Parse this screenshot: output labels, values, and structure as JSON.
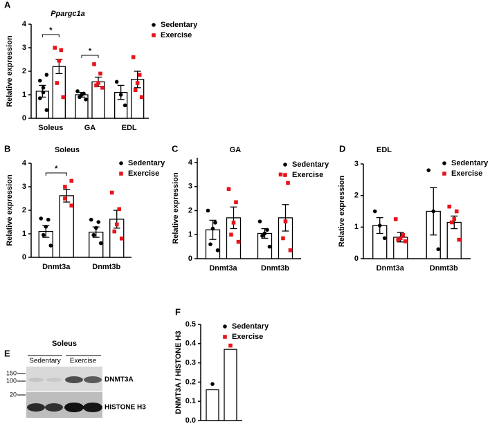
{
  "chart_data": [
    {
      "type": "bar",
      "panel": "A",
      "title": "Ppargc1a",
      "y_label": "Relative expression",
      "categories": [
        "Soleus",
        "GA",
        "EDL"
      ],
      "ylim": [
        0,
        4
      ],
      "yticks": [
        0,
        1,
        2,
        3,
        4
      ],
      "series": [
        {
          "name": "Sedentary",
          "color": "#000000",
          "values": [
            1.15,
            1.0,
            1.1
          ],
          "errors": [
            0.25,
            0.1,
            0.3
          ],
          "points": [
            [
              0.35,
              0.85,
              1.1,
              1.3,
              1.6,
              1.85
            ],
            [
              0.8,
              0.9,
              1.0,
              1.05,
              1.15
            ],
            [
              0.55,
              1.0,
              1.55
            ]
          ]
        },
        {
          "name": "Exercise",
          "color": "#e8141b",
          "values": [
            2.2,
            1.55,
            1.65
          ],
          "errors": [
            0.3,
            0.2,
            0.35
          ],
          "points": [
            [
              0.9,
              1.5,
              2.45,
              2.9,
              3.0
            ],
            [
              1.3,
              1.4,
              1.5,
              1.9,
              2.3
            ],
            [
              0.9,
              1.2,
              1.5,
              1.85,
              2.6
            ]
          ]
        }
      ],
      "annotations": [
        "*",
        "*"
      ]
    },
    {
      "type": "bar",
      "panel": "B",
      "title": "Soleus",
      "y_label": "Relative expression",
      "categories": [
        "Dnmt3a",
        "Dnmt3b"
      ],
      "ylim": [
        0,
        4
      ],
      "yticks": [
        0,
        1,
        2,
        3,
        4
      ],
      "series": [
        {
          "name": "Sedentary",
          "color": "#000000",
          "values": [
            1.1,
            1.07
          ],
          "errors": [
            0.25,
            0.22
          ],
          "points": [
            [
              0.5,
              0.95,
              1.3,
              1.6,
              1.65
            ],
            [
              0.6,
              0.95,
              1.25,
              1.5,
              1.6
            ]
          ]
        },
        {
          "name": "Exercise",
          "color": "#e8141b",
          "values": [
            2.62,
            1.62
          ],
          "errors": [
            0.27,
            0.38
          ],
          "points": [
            [
              2.2,
              2.5,
              3.0,
              3.25
            ],
            [
              0.8,
              1.1,
              1.4,
              2.05,
              2.75
            ]
          ]
        }
      ],
      "annotations": [
        "*"
      ]
    },
    {
      "type": "bar",
      "panel": "C",
      "title": "GA",
      "y_label": "Relative expression",
      "categories": [
        "Dnmt3a",
        "Dnmt3b"
      ],
      "ylim": [
        0,
        4.2
      ],
      "yticks": [
        0,
        1,
        2,
        3,
        4
      ],
      "series": [
        {
          "name": "Sedentary",
          "color": "#000000",
          "values": [
            1.2,
            1.05
          ],
          "errors": [
            0.4,
            0.2
          ],
          "points": [
            [
              0.35,
              0.6,
              1.25,
              1.5,
              2.0
            ],
            [
              0.5,
              0.95,
              1.05,
              1.2,
              1.55
            ]
          ]
        },
        {
          "name": "Exercise",
          "color": "#e8141b",
          "values": [
            1.7,
            1.7
          ],
          "errors": [
            0.45,
            0.55
          ],
          "points": [
            [
              0.7,
              1.0,
              1.5,
              2.35,
              2.9
            ],
            [
              0.35,
              0.85,
              1.55,
              3.15,
              3.5
            ]
          ]
        }
      ]
    },
    {
      "type": "bar",
      "panel": "D",
      "title": "EDL",
      "y_label": "Relative expression",
      "categories": [
        "Dnmt3a",
        "Dnmt3b"
      ],
      "ylim": [
        0,
        3
      ],
      "yticks": [
        0,
        1,
        2,
        3
      ],
      "series": [
        {
          "name": "Sedentary",
          "color": "#000000",
          "values": [
            1.05,
            1.5
          ],
          "errors": [
            0.25,
            0.75
          ],
          "points": [
            [
              0.65,
              1.05,
              1.5
            ],
            [
              0.3,
              1.5,
              2.8
            ]
          ]
        },
        {
          "name": "Exercise",
          "color": "#e8141b",
          "values": [
            0.68,
            1.15
          ],
          "errors": [
            0.15,
            0.2
          ],
          "points": [
            [
              0.55,
              0.6,
              0.65,
              0.75,
              1.25
            ],
            [
              0.6,
              1.15,
              1.25,
              1.5,
              1.65
            ]
          ]
        }
      ]
    },
    {
      "type": "bar",
      "panel": "F",
      "y_label": "DNMT3A / HISTONE H3",
      "categories": [
        null
      ],
      "ylim": [
        0,
        0.5
      ],
      "yticks": [
        {
          "value": 0,
          "label": "0.0"
        },
        0.1,
        0.2,
        0.3,
        0.4,
        0.5
      ],
      "series": [
        {
          "name": "Sedentary",
          "color": "#000000",
          "values": [
            0.16
          ],
          "points": [
            [
              0.19
            ]
          ]
        },
        {
          "name": "Exercise",
          "color": "#e8141b",
          "values": [
            0.37
          ],
          "points": [
            [
              0.39
            ]
          ]
        }
      ]
    }
  ],
  "blot": {
    "panel": "E",
    "title": "Soleus",
    "groups": [
      "Sedentary",
      "Exercise"
    ],
    "markers": [
      "150",
      "100",
      "20"
    ],
    "bands": [
      "DNMT3A",
      "HISTONE H3"
    ]
  }
}
